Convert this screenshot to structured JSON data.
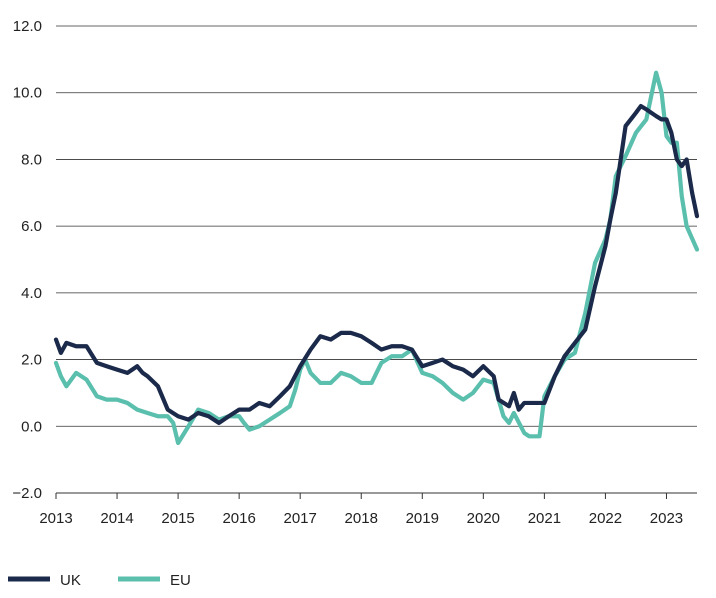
{
  "chart_data": {
    "type": "line",
    "title": "",
    "xlabel": "",
    "ylabel": "",
    "ylim": [
      -2.0,
      12.0
    ],
    "xlim": [
      2013.0,
      2023.5
    ],
    "y_ticks": [
      "−2.0",
      "0.0",
      "2.0",
      "4.0",
      "6.0",
      "8.0",
      "10.0",
      "12.0"
    ],
    "y_tick_values": [
      -2,
      0,
      2,
      4,
      6,
      8,
      10,
      12
    ],
    "x_ticks": [
      "2013",
      "2014",
      "2015",
      "2016",
      "2017",
      "2018",
      "2019",
      "2020",
      "2021",
      "2022",
      "2023"
    ],
    "x_tick_values": [
      2013,
      2014,
      2015,
      2016,
      2017,
      2018,
      2019,
      2020,
      2021,
      2022,
      2023
    ],
    "grid": "horizontal",
    "legend_position": "bottom-left",
    "series": [
      {
        "name": "UK",
        "color": "#1b2a4a",
        "x": [
          2013.0,
          2013.08,
          2013.17,
          2013.33,
          2013.5,
          2013.67,
          2013.83,
          2014.0,
          2014.17,
          2014.33,
          2014.42,
          2014.5,
          2014.67,
          2014.83,
          2015.0,
          2015.17,
          2015.33,
          2015.5,
          2015.67,
          2015.83,
          2016.0,
          2016.17,
          2016.33,
          2016.5,
          2016.67,
          2016.83,
          2017.0,
          2017.17,
          2017.33,
          2017.5,
          2017.67,
          2017.83,
          2018.0,
          2018.17,
          2018.33,
          2018.5,
          2018.67,
          2018.83,
          2019.0,
          2019.17,
          2019.33,
          2019.5,
          2019.67,
          2019.83,
          2020.0,
          2020.17,
          2020.25,
          2020.42,
          2020.5,
          2020.58,
          2020.67,
          2020.75,
          2020.92,
          2021.0,
          2021.17,
          2021.33,
          2021.5,
          2021.67,
          2021.83,
          2022.0,
          2022.08,
          2022.17,
          2022.33,
          2022.5,
          2022.58,
          2022.67,
          2022.83,
          2022.92,
          2023.0,
          2023.08,
          2023.17,
          2023.25,
          2023.33,
          2023.42,
          2023.5
        ],
        "values": [
          2.6,
          2.2,
          2.5,
          2.4,
          2.4,
          1.9,
          1.8,
          1.7,
          1.6,
          1.8,
          1.6,
          1.5,
          1.2,
          0.5,
          0.3,
          0.2,
          0.4,
          0.3,
          0.1,
          0.3,
          0.5,
          0.5,
          0.7,
          0.6,
          0.9,
          1.2,
          1.8,
          2.3,
          2.7,
          2.6,
          2.8,
          2.8,
          2.7,
          2.5,
          2.3,
          2.4,
          2.4,
          2.3,
          1.8,
          1.9,
          2.0,
          1.8,
          1.7,
          1.5,
          1.8,
          1.5,
          0.8,
          0.6,
          1.0,
          0.5,
          0.7,
          0.7,
          0.7,
          0.7,
          1.5,
          2.1,
          2.5,
          2.9,
          4.2,
          5.4,
          6.2,
          7.0,
          9.0,
          9.4,
          9.6,
          9.5,
          9.3,
          9.2,
          9.2,
          8.8,
          8.0,
          7.8,
          8.0,
          7.0,
          6.3
        ]
      },
      {
        "name": "EU",
        "color": "#5bbfae",
        "x": [
          2013.0,
          2013.08,
          2013.17,
          2013.33,
          2013.5,
          2013.67,
          2013.83,
          2014.0,
          2014.17,
          2014.33,
          2014.5,
          2014.67,
          2014.83,
          2014.92,
          2015.0,
          2015.17,
          2015.33,
          2015.5,
          2015.67,
          2015.83,
          2016.0,
          2016.08,
          2016.17,
          2016.33,
          2016.5,
          2016.67,
          2016.83,
          2016.92,
          2017.0,
          2017.08,
          2017.17,
          2017.33,
          2017.5,
          2017.67,
          2017.83,
          2018.0,
          2018.17,
          2018.33,
          2018.5,
          2018.67,
          2018.83,
          2019.0,
          2019.17,
          2019.33,
          2019.5,
          2019.67,
          2019.83,
          2020.0,
          2020.17,
          2020.33,
          2020.42,
          2020.5,
          2020.67,
          2020.75,
          2020.83,
          2020.92,
          2021.0,
          2021.17,
          2021.33,
          2021.5,
          2021.67,
          2021.83,
          2022.0,
          2022.08,
          2022.17,
          2022.33,
          2022.5,
          2022.67,
          2022.83,
          2022.92,
          2023.0,
          2023.08,
          2023.17,
          2023.25,
          2023.33,
          2023.5
        ],
        "values": [
          1.9,
          1.5,
          1.2,
          1.6,
          1.4,
          0.9,
          0.8,
          0.8,
          0.7,
          0.5,
          0.4,
          0.3,
          0.3,
          0.1,
          -0.5,
          0.0,
          0.5,
          0.4,
          0.2,
          0.3,
          0.3,
          0.1,
          -0.1,
          0.0,
          0.2,
          0.4,
          0.6,
          1.1,
          1.7,
          2.0,
          1.6,
          1.3,
          1.3,
          1.6,
          1.5,
          1.3,
          1.3,
          1.9,
          2.1,
          2.1,
          2.3,
          1.6,
          1.5,
          1.3,
          1.0,
          0.8,
          1.0,
          1.4,
          1.3,
          0.3,
          0.1,
          0.4,
          -0.2,
          -0.3,
          -0.3,
          -0.3,
          0.9,
          1.5,
          2.0,
          2.2,
          3.4,
          4.9,
          5.6,
          6.2,
          7.5,
          8.1,
          8.8,
          9.2,
          10.6,
          10.0,
          8.7,
          8.5,
          8.5,
          6.9,
          6.0,
          5.3
        ]
      }
    ]
  }
}
